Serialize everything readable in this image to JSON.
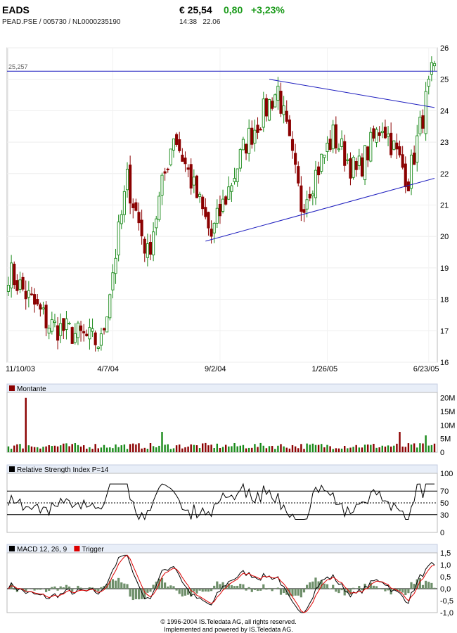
{
  "header": {
    "symbol": "EADS",
    "identifiers": "PEAD.PSE   /   005730   /   NL0000235190",
    "price": "€ 25,54",
    "change": "0,80",
    "change_pct": "+3,23%",
    "time": "14:38",
    "date": "22.06"
  },
  "colors": {
    "up": "#1a8a1a",
    "down": "#8b0000",
    "trend": "#1f1fbf",
    "panel_label_bg": "#e8eef8",
    "macd": "#000000",
    "trigger": "#dd0000",
    "hist": "#6e8f6a"
  },
  "footer": {
    "line1": "© 1996-2004 IS.Teledata AG, all rights reserved.",
    "line2": "Implemented and powered by  IS.Teledata AG."
  },
  "chart_data": [
    {
      "type": "candlestick",
      "title": "",
      "x_tick_labels": [
        "11/10/03",
        "4/7/04",
        "9/2/04",
        "1/26/05",
        "6/23/05"
      ],
      "y_ticks": [
        16,
        17,
        18,
        19,
        20,
        21,
        22,
        23,
        24,
        25,
        26
      ],
      "ylim": [
        16,
        26
      ],
      "grid": true,
      "reference_line": {
        "label": "25,257",
        "value": 25.257
      },
      "trendlines": [
        {
          "from": [
            "9/2/04 area",
            19.9
          ],
          "to": [
            "6/23/05",
            21.8
          ]
        },
        {
          "from": [
            "late 10/04",
            25.0
          ],
          "to": [
            "6/23/05",
            24.1
          ]
        }
      ],
      "anchors": [
        {
          "x": "11/10/03",
          "y": 18.9
        },
        {
          "x": "early 1/04",
          "y": 17.2
        },
        {
          "x": "4/7/04",
          "y": 16.6
        },
        {
          "x": "early 5/04",
          "y": 21.8
        },
        {
          "x": "mid 6/04",
          "y": 19.4
        },
        {
          "x": "late 7/04",
          "y": 23.3
        },
        {
          "x": "9/2/04",
          "y": 20.0
        },
        {
          "x": "early 10/04",
          "y": 23.0
        },
        {
          "x": "mid 11/04",
          "y": 24.7
        },
        {
          "x": "mid 12/04",
          "y": 21.0
        },
        {
          "x": "1/26/05",
          "y": 23.2
        },
        {
          "x": "mid 3/05",
          "y": 22.0
        },
        {
          "x": "early 4/05",
          "y": 23.6
        },
        {
          "x": "mid 5/05",
          "y": 21.8
        },
        {
          "x": "6/23/05",
          "y": 25.5
        }
      ]
    },
    {
      "type": "bar",
      "title": "Montante",
      "y_tick_labels": [
        "20M",
        "15M",
        "10M",
        "5M",
        "0"
      ],
      "ylim": [
        0,
        22
      ],
      "note": "daily volume, typically 1-3M, one spike near 20M in mid 11/03"
    },
    {
      "type": "line",
      "title": "Relative Strength Index P=14",
      "y_tick_labels": [
        "100",
        "70",
        "50",
        "30",
        "0"
      ],
      "ylim": [
        0,
        100
      ],
      "levels": [
        30,
        50,
        70
      ]
    },
    {
      "type": "line",
      "title_macd": "MACD 12, 26, 9",
      "title_trigger": "Trigger",
      "y_tick_labels": [
        "1,5",
        "1,0",
        "0,5",
        "0,0",
        "-0,5",
        "-1,0"
      ],
      "ylim": [
        -1,
        1.5
      ]
    }
  ]
}
